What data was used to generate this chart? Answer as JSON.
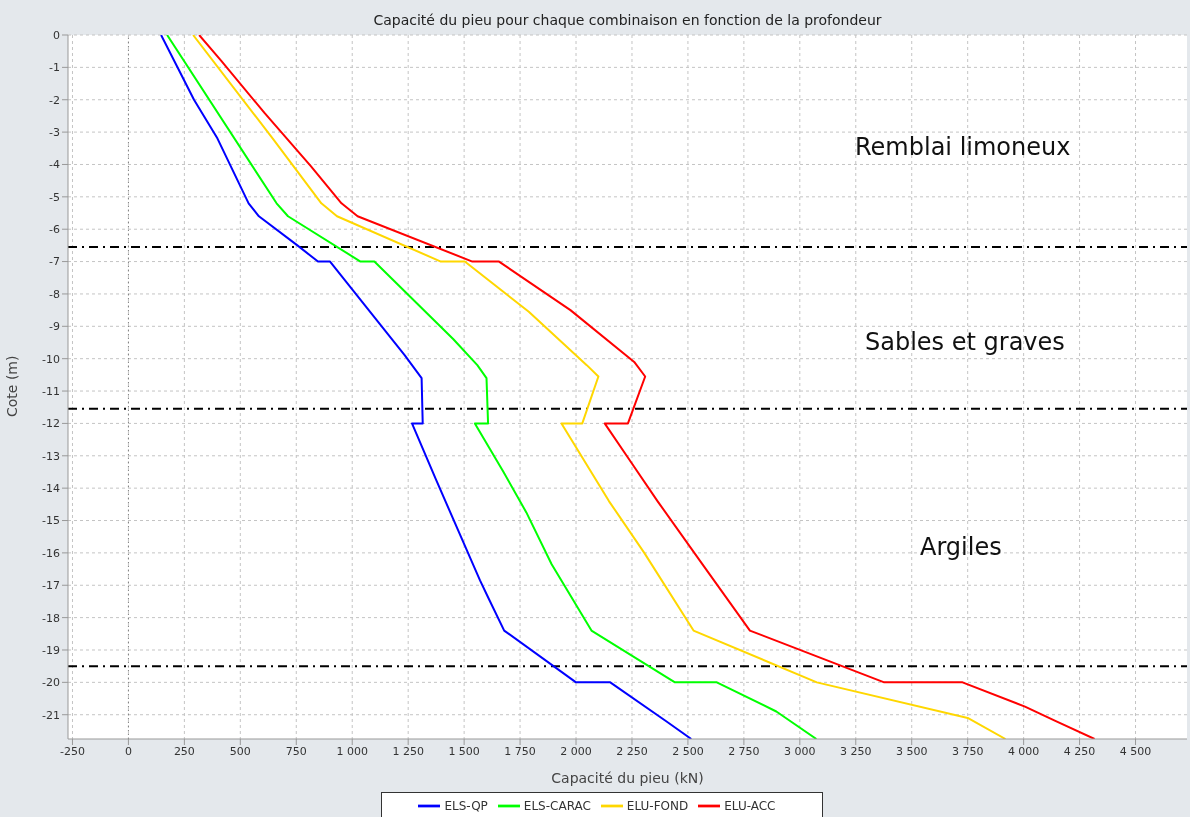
{
  "chart_data": {
    "type": "line",
    "title": "Capacité du pieu pour chaque combinaison en fonction de la profondeur",
    "xlabel": "Capacité du pieu (kN)",
    "ylabel": "Cote (m)",
    "xlim": [
      -270,
      4730
    ],
    "ylim": [
      -21.75,
      0
    ],
    "xticks": [
      -250,
      0,
      250,
      500,
      750,
      {
        "value": 1000,
        "label": "1 000"
      },
      {
        "value": 1250,
        "label": "1 250"
      },
      {
        "value": 1500,
        "label": "1 500"
      },
      {
        "value": 1750,
        "label": "1 750"
      },
      {
        "value": 2000,
        "label": "2 000"
      },
      {
        "value": 2250,
        "label": "2 250"
      },
      {
        "value": 2500,
        "label": "2 500"
      },
      {
        "value": 2750,
        "label": "2 750"
      },
      {
        "value": 3000,
        "label": "3 000"
      },
      {
        "value": 3250,
        "label": "3 250"
      },
      {
        "value": 3500,
        "label": "3 500"
      },
      {
        "value": 3750,
        "label": "3 750"
      },
      {
        "value": 4000,
        "label": "4 000"
      },
      {
        "value": 4250,
        "label": "4 250"
      },
      {
        "value": 4500,
        "label": "4 500"
      }
    ],
    "yticks": [
      0,
      -1,
      -2,
      -3,
      -4,
      -5,
      -6,
      -7,
      -8,
      -9,
      -10,
      -11,
      -12,
      -13,
      -14,
      -15,
      -16,
      -17,
      -18,
      -19,
      -20,
      -21
    ],
    "grid": true,
    "legend": "bottom",
    "marker": "none",
    "line_style": "solid",
    "series": [
      {
        "name": "ELS-QP",
        "color": "#0000ff",
        "x": [
          146,
          293,
          398,
          537,
          583,
          755,
          847,
          901,
          1235,
          1310,
          1315,
          1267,
          1372,
          1571,
          1609,
          1679,
          2000,
          2153,
          2403,
          2515
        ],
        "values": [
          0,
          -2,
          -3.2,
          -5.2,
          -5.6,
          -6.5,
          -7,
          -7,
          -9.9,
          -10.6,
          -12,
          -12,
          -13.7,
          -16.85,
          -17.4,
          -18.4,
          -20,
          -20,
          -21.2,
          -21.75
        ]
      },
      {
        "name": "ELS-CARAC",
        "color": "#00ff00",
        "x": [
          173,
          662,
          713,
          1037,
          1099,
          1452,
          1559,
          1600,
          1607,
          1548,
          1676,
          1778,
          1891,
          2069,
          2442,
          2629,
          2895,
          3074
        ],
        "values": [
          0,
          -5.2,
          -5.6,
          -7,
          -7,
          -9.4,
          -10.2,
          -10.6,
          -12,
          -12,
          -13.5,
          -14.75,
          -16.35,
          -18.4,
          -20,
          -20,
          -20.9,
          -21.75
        ]
      },
      {
        "name": "ELU-FOND",
        "color": "#ffd700",
        "x": [
          289,
          645,
          862,
          932,
          1396,
          1503,
          1789,
          2048,
          2100,
          2028,
          1935,
          2147,
          2305,
          2525,
          3076,
          3750,
          3919
        ],
        "values": [
          0,
          -3.2,
          -5.2,
          -5.6,
          -7,
          -7,
          -8.55,
          -10.2,
          -10.55,
          -12,
          -12,
          -14.4,
          -16,
          -18.4,
          -20,
          -21.1,
          -21.75
        ]
      },
      {
        "name": "ELU-ACC",
        "color": "#ff0000",
        "x": [
          316,
          415,
          607,
          815,
          952,
          1024,
          1537,
          1656,
          1975,
          2260,
          2309,
          2232,
          2128,
          2246,
          2364,
          2570,
          2777,
          3377,
          3727,
          4006,
          4144,
          4317
        ],
        "values": [
          0,
          -0.8,
          -2.4,
          -4.05,
          -5.2,
          -5.6,
          -7,
          -7,
          -8.5,
          -10.1,
          -10.55,
          -12,
          -12,
          -13.2,
          -14.4,
          -16.4,
          -18.4,
          -20,
          -20,
          -20.75,
          -21.2,
          -21.75
        ]
      }
    ],
    "ref_lines": [
      {
        "axis": "x",
        "value": 0,
        "color": "#808080",
        "line_style": "dotted"
      },
      {
        "axis": "y",
        "value": -6.55,
        "color": "#000000",
        "line_style": "dashed"
      },
      {
        "axis": "y",
        "value": -11.55,
        "color": "#000000",
        "line_style": "dashed"
      },
      {
        "axis": "y",
        "value": -19.5,
        "color": "#000000",
        "line_style": "dashed"
      }
    ],
    "annotations": [
      "Remblai limoneux",
      "Sables et graves",
      "Argiles"
    ]
  }
}
